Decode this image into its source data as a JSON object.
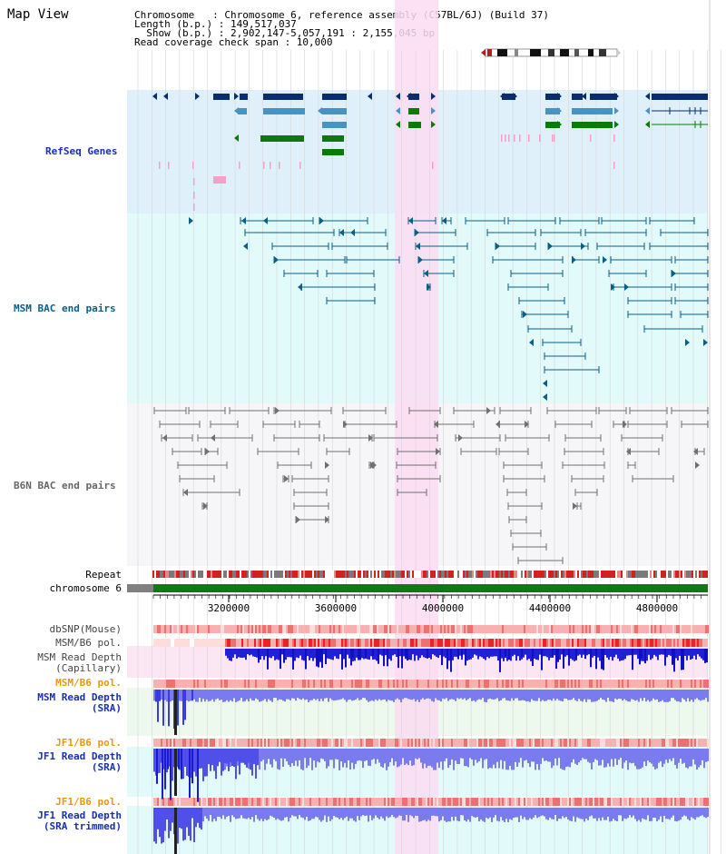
{
  "app": {
    "title": "Map View"
  },
  "info": {
    "line1": "Chromosome   : Chromosome 6, reference assembly (C57BL/6J) (Build 37)",
    "line2": "Length (b.p.) : 149,517,037",
    "line3": "  Show (b.p.) : 2,902,147-5,057,191 : 2,155,045 bp",
    "line4": "Read coverage check span : 10,000"
  },
  "tracks": {
    "refseq": "RefSeq Genes",
    "msm_bac": "MSM BAC end pairs",
    "b6n_bac": "B6N BAC end pairs",
    "repeat": "Repeat",
    "chromosome": "chromosome 6",
    "dbsnp": "dbSNP(Mouse)",
    "msm_b6_pol_1": "MSM/B6 pol.",
    "msm_read_depth_cap_1": "MSM Read Depth",
    "msm_read_depth_cap_2": "(Capillary)",
    "msm_b6_pol_2": "MSM/B6 pol.",
    "msm_read_depth_sra_1": "MSM Read Depth",
    "msm_read_depth_sra_2": "(SRA)",
    "jf1_b6_pol_1": "JF1/B6 pol.",
    "jf1_read_depth_1": "JF1 Read Depth",
    "jf1_read_depth_2": "(SRA)",
    "jf1_b6_pol_2": "JF1/B6 pol.",
    "jf1_read_depth_trim_1": "JF1 Read Depth",
    "jf1_read_depth_trim_2": "(SRA trimmed)"
  },
  "axis": {
    "ticks": [
      "3200000",
      "3600000",
      "4000000",
      "4400000",
      "4800000"
    ]
  },
  "colors": {
    "refseq_bg": "#dff0fb",
    "msm_bg": "#e2fafa",
    "b6n_bg": "#f6f6f8",
    "highlight": "#fbdcf2",
    "refseq_dark": "#0a2e6b",
    "refseq_mid": "#4a93c0",
    "refseq_green": "#0b7a0b",
    "msm_line": "#0b5f86",
    "b6n_line": "#707070",
    "label_blue": "#1a2fb0",
    "label_teal": "#0b5f86",
    "label_gray": "#666666",
    "label_orange": "#e39a10"
  }
}
